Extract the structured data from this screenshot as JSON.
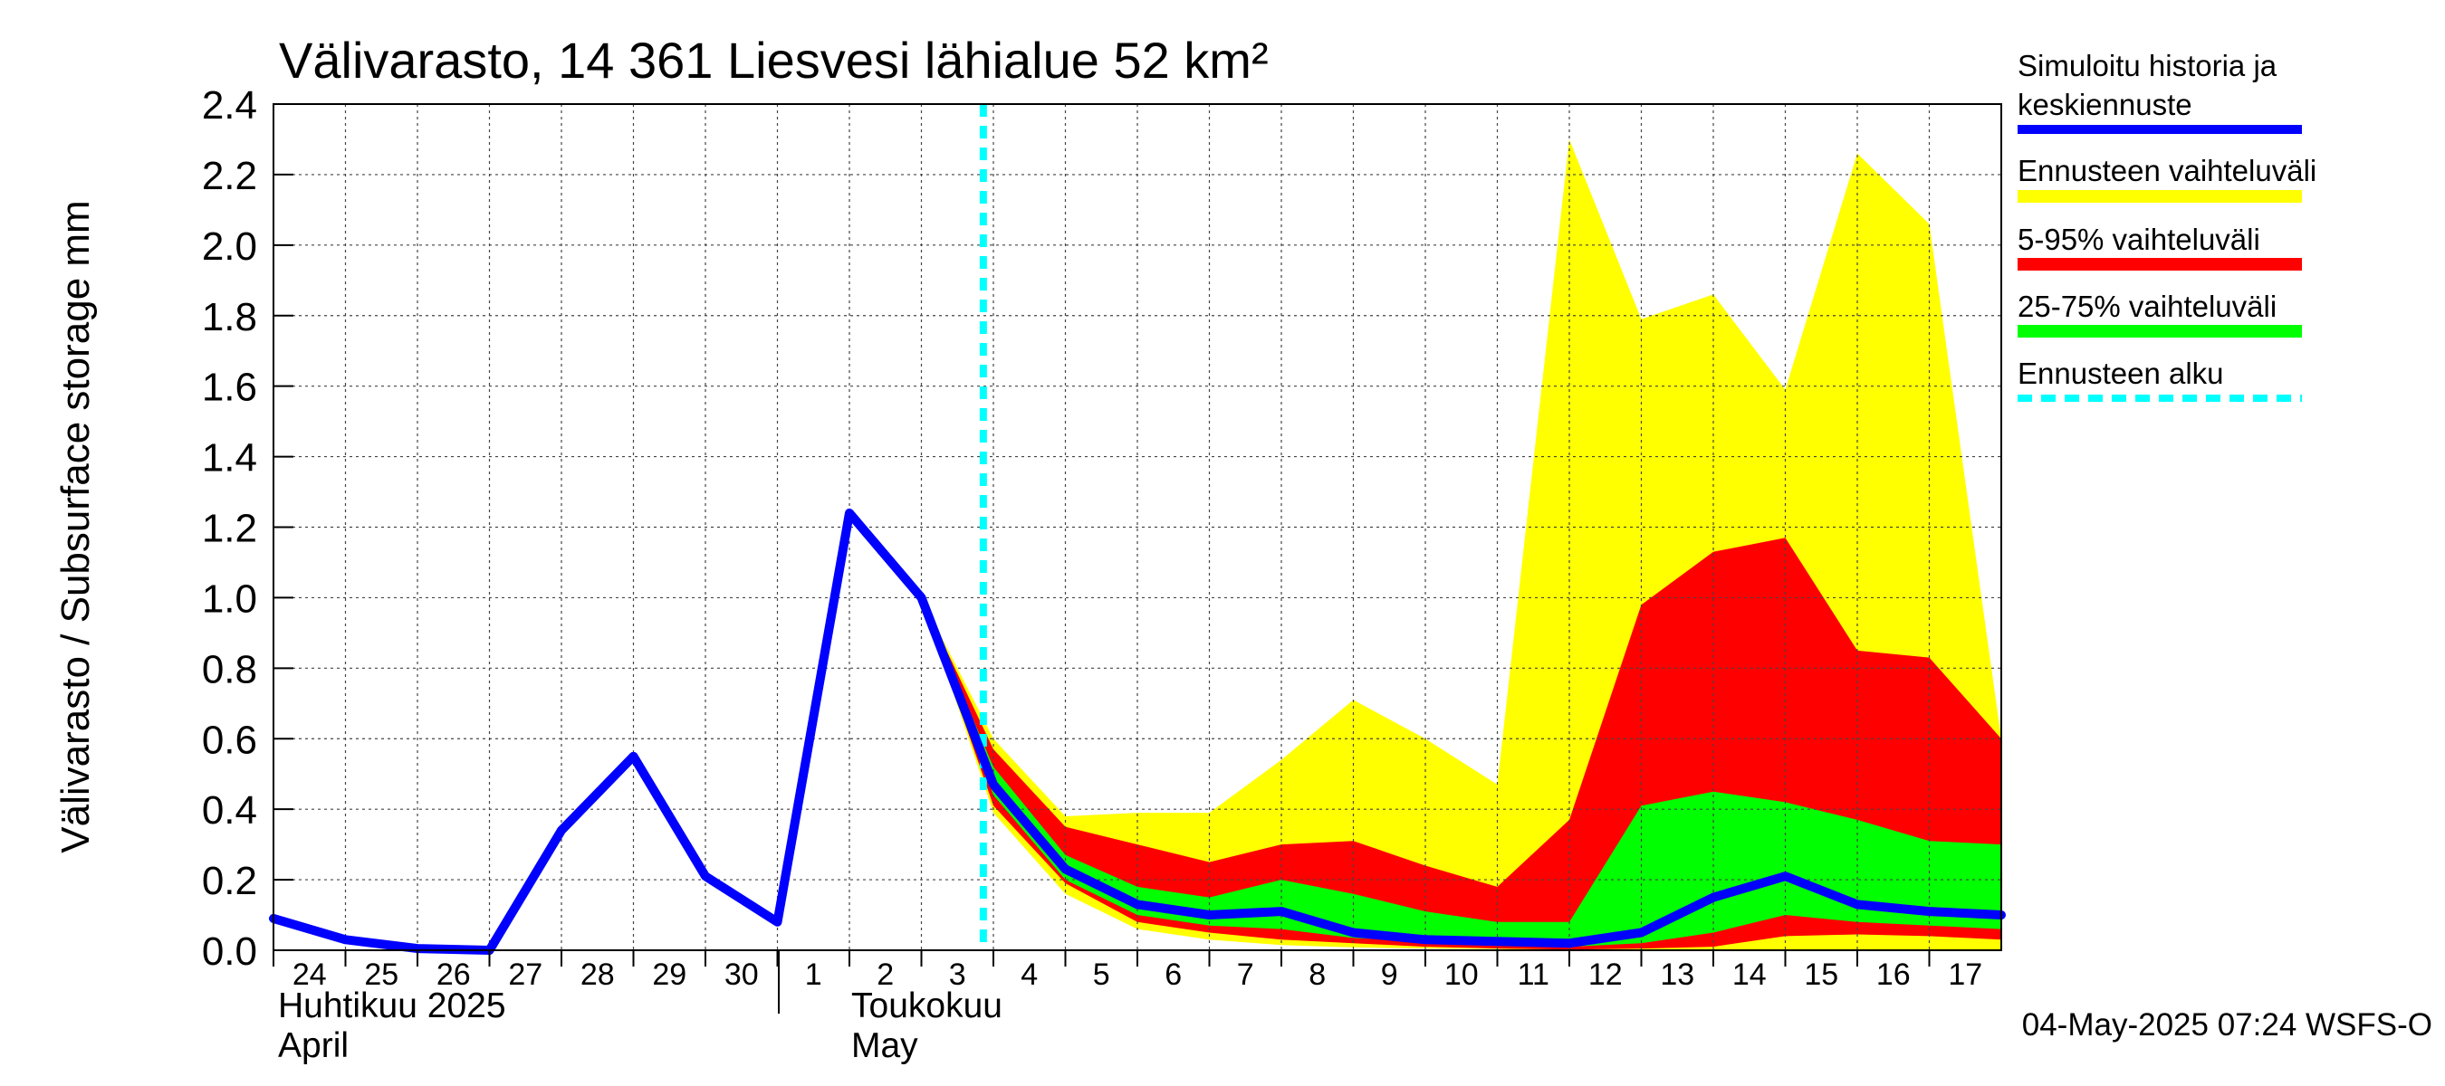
{
  "chart_data": {
    "type": "area",
    "title": "Välivarasto, 14 361 Liesvesi lähialue 52 km²",
    "ylabel": "Välivarasto / Subsurface storage  mm",
    "ylim": [
      0.0,
      2.4
    ],
    "yticks": [
      "0.0",
      "0.2",
      "0.4",
      "0.6",
      "0.8",
      "1.0",
      "1.2",
      "1.4",
      "1.6",
      "1.8",
      "2.0",
      "2.2",
      "2.4"
    ],
    "grid": true,
    "x_day_labels": [
      "24",
      "25",
      "26",
      "27",
      "28",
      "29",
      "30",
      "1",
      "2",
      "3",
      "4",
      "5",
      "6",
      "7",
      "8",
      "9",
      "10",
      "11",
      "12",
      "13",
      "14",
      "15",
      "16",
      "17"
    ],
    "month_labels": [
      {
        "fi": "Huhtikuu  2025",
        "en": "April"
      },
      {
        "fi": "Toukokuu",
        "en": "May"
      }
    ],
    "forecast_start_day": "4",
    "timestamp": "04-May-2025 07:24 WSFS-O",
    "legend": [
      {
        "label_line1": "Simuloitu historia ja",
        "label_line2": "keskiennuste",
        "color": "#0000ff",
        "style": "line"
      },
      {
        "label_line1": "Ennusteen vaihteluväli",
        "color": "#ffff00",
        "style": "line"
      },
      {
        "label_line1": "5-95% vaihteluväli",
        "color": "#ff0000",
        "style": "line"
      },
      {
        "label_line1": "25-75% vaihteluväli",
        "color": "#00ff00",
        "style": "line"
      },
      {
        "label_line1": "Ennusteen alku",
        "color": "#00ffff",
        "style": "dashed"
      }
    ],
    "colors": {
      "history": "#0000ff",
      "range": "#ffff00",
      "p5_95": "#ff0000",
      "p25_75": "#00ff00",
      "forecast_start": "#00ffff"
    },
    "history": {
      "x": [
        0,
        1,
        2,
        3,
        4,
        5,
        6,
        7,
        8,
        9
      ],
      "y": [
        0.09,
        0.03,
        0.005,
        0.0,
        0.34,
        0.55,
        0.21,
        0.08,
        1.24,
        1.0
      ]
    },
    "bands": {
      "x": [
        9,
        10,
        11,
        12,
        13,
        14,
        15,
        16,
        17,
        18,
        19,
        20,
        21,
        22,
        23,
        24
      ],
      "range_upper": [
        1.0,
        0.6,
        0.38,
        0.39,
        0.39,
        0.54,
        0.71,
        0.6,
        0.47,
        2.3,
        1.79,
        1.86,
        1.59,
        2.26,
        2.06,
        0.6
      ],
      "range_lower": [
        1.0,
        0.39,
        0.16,
        0.06,
        0.03,
        0.015,
        0.008,
        0.005,
        0.003,
        0.0,
        0.0,
        0.0,
        0.0,
        0.0,
        0.0,
        0.0
      ],
      "p95": [
        1.0,
        0.57,
        0.35,
        0.3,
        0.25,
        0.3,
        0.31,
        0.24,
        0.18,
        0.37,
        0.98,
        1.13,
        1.17,
        0.85,
        0.83,
        0.6
      ],
      "p5": [
        1.0,
        0.41,
        0.19,
        0.08,
        0.05,
        0.03,
        0.02,
        0.01,
        0.005,
        0.002,
        0.005,
        0.01,
        0.04,
        0.045,
        0.04,
        0.03
      ],
      "p75": [
        1.0,
        0.52,
        0.27,
        0.18,
        0.15,
        0.2,
        0.16,
        0.11,
        0.08,
        0.08,
        0.41,
        0.45,
        0.42,
        0.37,
        0.31,
        0.3
      ],
      "p25": [
        1.0,
        0.44,
        0.2,
        0.1,
        0.07,
        0.06,
        0.035,
        0.025,
        0.015,
        0.01,
        0.02,
        0.05,
        0.1,
        0.08,
        0.07,
        0.06
      ],
      "median": [
        1.0,
        0.47,
        0.23,
        0.13,
        0.1,
        0.11,
        0.05,
        0.03,
        0.025,
        0.02,
        0.05,
        0.15,
        0.21,
        0.13,
        0.11,
        0.1
      ]
    }
  }
}
